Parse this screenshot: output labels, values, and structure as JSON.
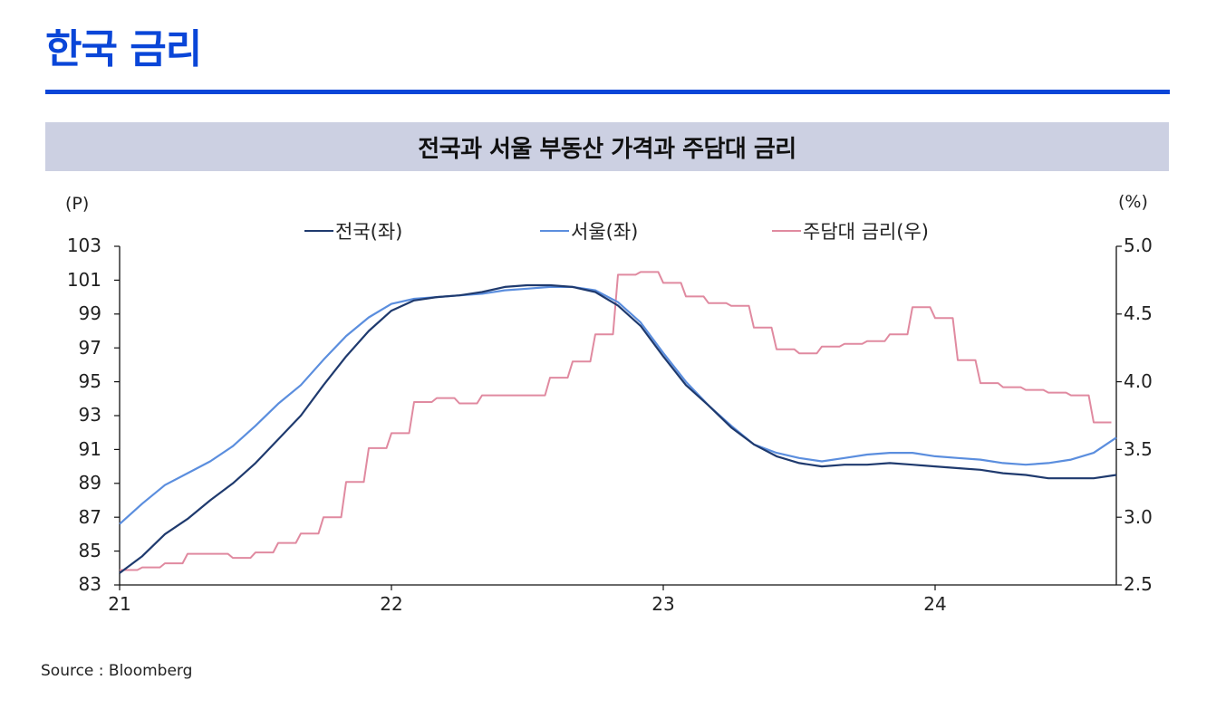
{
  "page": {
    "title": "한국 금리",
    "accent_color": "#0a46d8"
  },
  "chart_banner": {
    "title": "전국과 서울 부동산 가격과 주담대 금리",
    "background": "#ccd0e2"
  },
  "axes": {
    "left_unit": "(P)",
    "right_unit": "(%)",
    "left_ticks": [
      "103",
      "101",
      "99",
      "97",
      "95",
      "93",
      "91",
      "89",
      "87",
      "85",
      "83"
    ],
    "right_ticks": [
      "5.0",
      "4.5",
      "4.0",
      "3.5",
      "3.0",
      "2.5"
    ],
    "x_ticks": [
      "21",
      "22",
      "23",
      "24"
    ]
  },
  "legend": [
    {
      "label": "전국(좌)",
      "color": "#1f3a6e"
    },
    {
      "label": "서울(좌)",
      "color": "#5b8ede"
    },
    {
      "label": "주담대 금리(우)",
      "color": "#e08aa0"
    }
  ],
  "source": "Source : Bloomberg",
  "chart_data": {
    "type": "line",
    "title": "전국과 서울 부동산 가격과 주담대 금리",
    "xlabel": "",
    "ylabel": "(P)",
    "ylabel_right": "(%)",
    "ylim": [
      83,
      103
    ],
    "ylim_right": [
      2.5,
      5.0
    ],
    "x_tick_labels": [
      "21",
      "22",
      "23",
      "24"
    ],
    "grid": false,
    "legend_position": "top",
    "x": [
      "21-01",
      "21-02",
      "21-03",
      "21-04",
      "21-05",
      "21-06",
      "21-07",
      "21-08",
      "21-09",
      "21-10",
      "21-11",
      "21-12",
      "22-01",
      "22-02",
      "22-03",
      "22-04",
      "22-05",
      "22-06",
      "22-07",
      "22-08",
      "22-09",
      "22-10",
      "22-11",
      "22-12",
      "23-01",
      "23-02",
      "23-03",
      "23-04",
      "23-05",
      "23-06",
      "23-07",
      "23-08",
      "23-09",
      "23-10",
      "23-11",
      "23-12",
      "24-01",
      "24-02",
      "24-03",
      "24-04",
      "24-05",
      "24-06",
      "24-07",
      "24-08",
      "24-09"
    ],
    "series": [
      {
        "name": "전국(좌)",
        "axis": "left",
        "color": "#1f3a6e",
        "values": [
          83.7,
          84.7,
          86.0,
          86.9,
          88.0,
          89.0,
          90.2,
          91.6,
          93.0,
          94.8,
          96.5,
          98.0,
          99.2,
          99.8,
          100.0,
          100.1,
          100.3,
          100.6,
          100.7,
          100.7,
          100.6,
          100.3,
          99.5,
          98.3,
          96.5,
          94.8,
          93.6,
          92.3,
          91.3,
          90.6,
          90.2,
          90.0,
          90.1,
          90.1,
          90.2,
          90.1,
          90.0,
          89.9,
          89.8,
          89.6,
          89.5,
          89.3,
          89.3,
          89.3,
          89.5
        ]
      },
      {
        "name": "서울(좌)",
        "axis": "left",
        "color": "#5b8ede",
        "values": [
          86.6,
          87.8,
          88.9,
          89.6,
          90.3,
          91.2,
          92.4,
          93.7,
          94.8,
          96.3,
          97.7,
          98.8,
          99.6,
          99.9,
          100.0,
          100.1,
          100.2,
          100.4,
          100.5,
          100.6,
          100.6,
          100.4,
          99.7,
          98.5,
          96.7,
          95.0,
          93.6,
          92.4,
          91.3,
          90.8,
          90.5,
          90.3,
          90.5,
          90.7,
          90.8,
          90.8,
          90.6,
          90.5,
          90.4,
          90.2,
          90.1,
          90.2,
          90.4,
          90.8,
          91.7
        ]
      },
      {
        "name": "주담대 금리(우)",
        "axis": "right",
        "color": "#e08aa0",
        "values": [
          2.61,
          2.63,
          2.66,
          2.73,
          2.73,
          2.7,
          2.74,
          2.81,
          2.88,
          3.0,
          3.26,
          3.51,
          3.62,
          3.85,
          3.88,
          3.84,
          3.9,
          3.9,
          3.9,
          4.03,
          4.15,
          4.35,
          4.79,
          4.81,
          4.73,
          4.63,
          4.58,
          4.56,
          4.4,
          4.24,
          4.21,
          4.26,
          4.28,
          4.3,
          4.35,
          4.55,
          4.47,
          4.16,
          3.99,
          3.96,
          3.94,
          3.92,
          3.9,
          3.7,
          null
        ]
      }
    ]
  }
}
